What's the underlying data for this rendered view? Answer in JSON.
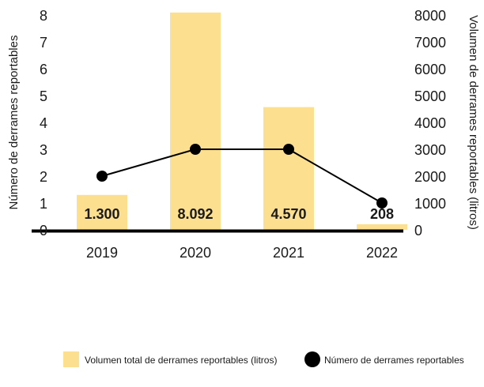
{
  "chart_data": {
    "type": "bar",
    "categories": [
      "2019",
      "2020",
      "2021",
      "2022"
    ],
    "series": [
      {
        "name": "Volumen total de derrames reportables (litros)",
        "type": "bar",
        "axis": "right",
        "values": [
          1300,
          8092,
          4570,
          208
        ],
        "labels": [
          "1.300",
          "8.092",
          "4.570",
          "208"
        ],
        "color": "#fde08f"
      },
      {
        "name": "Número de derrames reportables",
        "type": "line",
        "axis": "left",
        "values": [
          2,
          3,
          3,
          1
        ],
        "color": "#000000"
      }
    ],
    "y_left": {
      "label": "Número de derrames reportables",
      "min": 0,
      "max": 8,
      "ticks": [
        "0",
        "1",
        "2",
        "3",
        "4",
        "5",
        "6",
        "7",
        "8"
      ]
    },
    "y_right": {
      "label": "Volumen de derrames reportables (litros)",
      "min": 0,
      "max": 8000,
      "ticks": [
        "0",
        "1000",
        "2000",
        "3000",
        "4000",
        "5000",
        "6000",
        "7000",
        "8000"
      ]
    },
    "grid": false,
    "legend_position": "bottom-right"
  }
}
